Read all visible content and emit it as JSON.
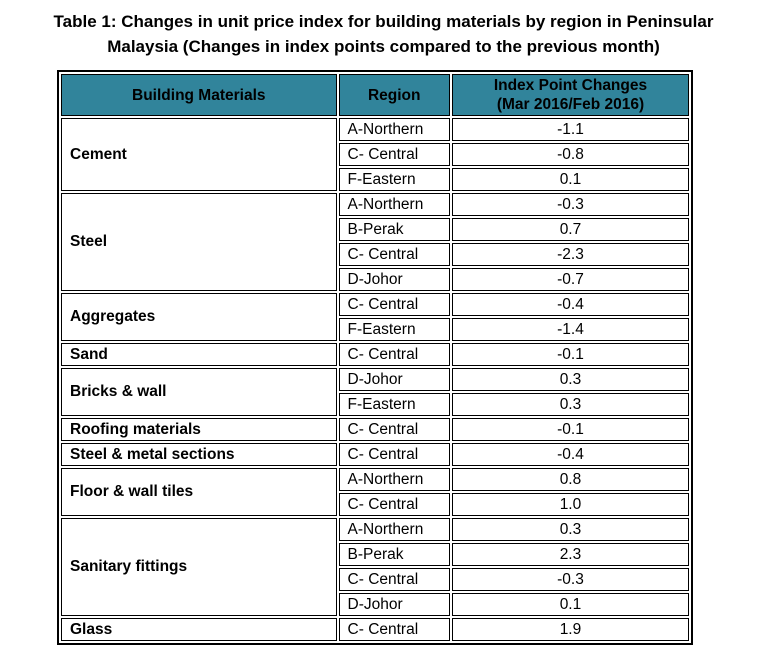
{
  "title": "Table 1: Changes in unit price index for building materials by region in Peninsular Malaysia (Changes in index points compared to the previous month)",
  "table": {
    "header_bg": "#31849B",
    "border_color": "#000000",
    "headers": [
      "Building Materials",
      "Region",
      "Index Point Changes\n(Mar 2016/Feb 2016)"
    ],
    "groups": [
      {
        "material": "Cement",
        "rows": [
          [
            "A-Northern",
            "-1.1"
          ],
          [
            "C- Central",
            "-0.8"
          ],
          [
            "F-Eastern",
            "0.1"
          ]
        ]
      },
      {
        "material": "Steel",
        "rows": [
          [
            "A-Northern",
            "-0.3"
          ],
          [
            "B-Perak",
            "0.7"
          ],
          [
            "C- Central",
            "-2.3"
          ],
          [
            "D-Johor",
            "-0.7"
          ]
        ]
      },
      {
        "material": "Aggregates",
        "rows": [
          [
            "C- Central",
            "-0.4"
          ],
          [
            "F-Eastern",
            "-1.4"
          ]
        ]
      },
      {
        "material": "Sand",
        "rows": [
          [
            "C- Central",
            "-0.1"
          ]
        ]
      },
      {
        "material": "Bricks & wall",
        "rows": [
          [
            "D-Johor",
            "0.3"
          ],
          [
            "F-Eastern",
            "0.3"
          ]
        ]
      },
      {
        "material": "Roofing materials",
        "rows": [
          [
            "C- Central",
            "-0.1"
          ]
        ]
      },
      {
        "material": "Steel & metal sections",
        "rows": [
          [
            "C- Central",
            "-0.4"
          ]
        ]
      },
      {
        "material": "Floor & wall tiles",
        "rows": [
          [
            "A-Northern",
            "0.8"
          ],
          [
            "C- Central",
            "1.0"
          ]
        ]
      },
      {
        "material": "Sanitary fittings",
        "rows": [
          [
            "A-Northern",
            "0.3"
          ],
          [
            "B-Perak",
            "2.3"
          ],
          [
            "C- Central",
            "-0.3"
          ],
          [
            "D-Johor",
            "0.1"
          ]
        ]
      },
      {
        "material": "Glass",
        "rows": [
          [
            "C- Central",
            "1.9"
          ]
        ]
      }
    ]
  },
  "chart_data": {
    "type": "table",
    "title": "Table 1: Changes in unit price index for building materials by region in Peninsular Malaysia (Changes in index points compared to the previous month)",
    "columns": [
      "Building Materials",
      "Region",
      "Index Point Changes (Mar 2016/Feb 2016)"
    ],
    "rows": [
      [
        "Cement",
        "A-Northern",
        -1.1
      ],
      [
        "Cement",
        "C- Central",
        -0.8
      ],
      [
        "Cement",
        "F-Eastern",
        0.1
      ],
      [
        "Steel",
        "A-Northern",
        -0.3
      ],
      [
        "Steel",
        "B-Perak",
        0.7
      ],
      [
        "Steel",
        "C- Central",
        -2.3
      ],
      [
        "Steel",
        "D-Johor",
        -0.7
      ],
      [
        "Aggregates",
        "C- Central",
        -0.4
      ],
      [
        "Aggregates",
        "F-Eastern",
        -1.4
      ],
      [
        "Sand",
        "C- Central",
        -0.1
      ],
      [
        "Bricks & wall",
        "D-Johor",
        0.3
      ],
      [
        "Bricks & wall",
        "F-Eastern",
        0.3
      ],
      [
        "Roofing materials",
        "C- Central",
        -0.1
      ],
      [
        "Steel & metal sections",
        "C- Central",
        -0.4
      ],
      [
        "Floor & wall tiles",
        "A-Northern",
        0.8
      ],
      [
        "Floor & wall tiles",
        "C- Central",
        1.0
      ],
      [
        "Sanitary fittings",
        "A-Northern",
        0.3
      ],
      [
        "Sanitary fittings",
        "B-Perak",
        2.3
      ],
      [
        "Sanitary fittings",
        "C- Central",
        -0.3
      ],
      [
        "Sanitary fittings",
        "D-Johor",
        0.1
      ],
      [
        "Glass",
        "C- Central",
        1.9
      ]
    ]
  }
}
